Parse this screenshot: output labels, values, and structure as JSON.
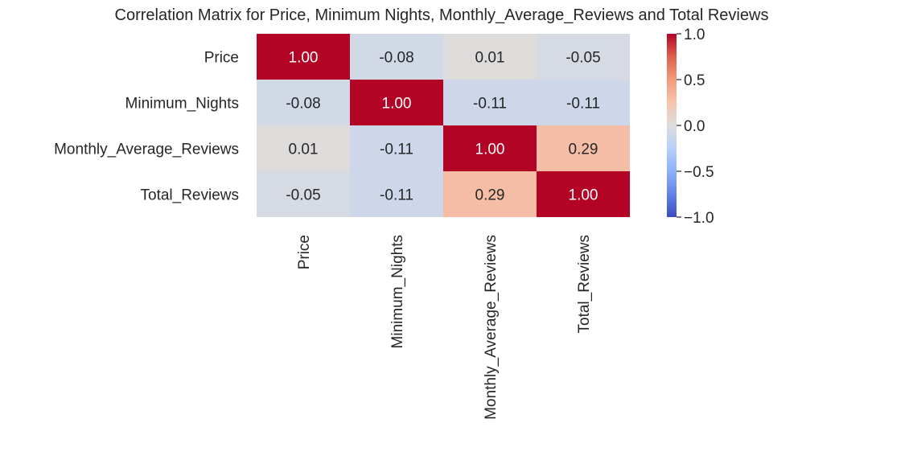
{
  "chart_data": {
    "type": "heatmap",
    "title": "Correlation Matrix for Price, Minimum Nights, Monthly_Average_Reviews and Total Reviews",
    "row_labels": [
      "Price",
      "Minimum_Nights",
      "Monthly_Average_Reviews",
      "Total_Reviews"
    ],
    "col_labels": [
      "Price",
      "Minimum_Nights",
      "Monthly_Average_Reviews",
      "Total_Reviews"
    ],
    "values": [
      [
        1.0,
        -0.08,
        0.01,
        -0.05
      ],
      [
        -0.08,
        1.0,
        -0.11,
        -0.11
      ],
      [
        0.01,
        -0.11,
        1.0,
        0.29
      ],
      [
        -0.05,
        -0.11,
        0.29,
        1.0
      ]
    ],
    "value_format": "2 decimals",
    "colormap": "coolwarm",
    "vmin": -1.0,
    "vmax": 1.0,
    "colorbar_ticks": [
      "1.0",
      "0.5",
      "0.0",
      "−0.5",
      "−1.0"
    ],
    "colorbar_tick_values": [
      1.0,
      0.5,
      0.0,
      -0.5,
      -1.0
    ],
    "grid": false
  }
}
